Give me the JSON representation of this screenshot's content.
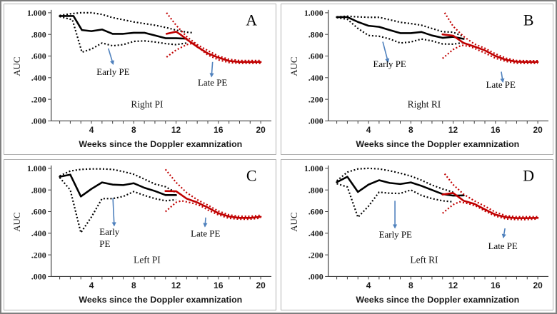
{
  "figure": {
    "background": "#ffffff",
    "outer_border_color": "#7f7f7f",
    "panel_border_color": "#b3b3b3",
    "axis_color": "#3f3f3f",
    "accent_red": "#c00000",
    "arrow_blue": "#4f81bd",
    "text_color": "#1a1a1a"
  },
  "chart_data": [
    {
      "type": "line",
      "panel_letter": "A",
      "caption": "Right PI",
      "xlabel": "Weeks since the Doppler examnization",
      "ylabel": "AUC",
      "ylim": [
        0.0,
        1.0
      ],
      "xlim": [
        0.3,
        20.9
      ],
      "x_major_ticks": [
        4,
        8,
        12,
        16,
        20
      ],
      "x_minor_ticks_range": [
        1,
        20
      ],
      "y_tick_values": [
        1.0,
        0.8,
        0.6,
        0.4,
        0.2,
        0.0
      ],
      "y_tick_labels": [
        "1.000",
        ".800",
        ".600",
        ".400",
        ".200",
        ".000"
      ],
      "grid": false,
      "series": [
        {
          "name": "auc-early-pe",
          "color": "#000000",
          "style": "solid",
          "weeks": [
            1,
            2.3,
            3.1,
            4,
            5,
            6,
            7,
            8,
            9,
            10,
            11,
            12,
            13
          ],
          "values": [
            0.97,
            0.97,
            0.84,
            0.83,
            0.845,
            0.805,
            0.805,
            0.815,
            0.815,
            0.79,
            0.765,
            0.765,
            0.76
          ]
        },
        {
          "name": "upper-ci-early-pe",
          "color": "#000000",
          "style": "dotted",
          "weeks": [
            1,
            2,
            3,
            4,
            5,
            6,
            7,
            8,
            9,
            10,
            11,
            12,
            13,
            13.6
          ],
          "values": [
            0.975,
            0.99,
            1.0,
            1.0,
            0.985,
            0.955,
            0.935,
            0.915,
            0.9,
            0.885,
            0.865,
            0.84,
            0.82,
            0.815
          ]
        },
        {
          "name": "lower-ci-early-pe",
          "color": "#000000",
          "style": "dotted",
          "weeks": [
            1,
            2.2,
            3.1,
            4,
            5,
            6,
            7,
            8,
            9,
            10,
            11,
            12,
            13
          ],
          "values": [
            0.965,
            0.935,
            0.635,
            0.665,
            0.72,
            0.695,
            0.705,
            0.735,
            0.74,
            0.73,
            0.715,
            0.705,
            0.72
          ]
        },
        {
          "name": "auc-late-pe",
          "color": "#c00000",
          "style": "solid",
          "weeks": [
            11.1,
            12,
            12.4,
            13,
            14,
            15,
            16,
            17,
            18,
            19,
            20
          ],
          "values": [
            0.805,
            0.825,
            0.8,
            0.755,
            0.685,
            0.625,
            0.585,
            0.555,
            0.545,
            0.545,
            0.545
          ]
        },
        {
          "name": "upper-ci-late-pe",
          "color": "#c00000",
          "style": "dotted",
          "weeks": [
            11.1,
            12,
            13,
            14,
            15,
            16,
            17,
            18,
            19,
            20
          ],
          "values": [
            1.0,
            0.885,
            0.78,
            0.705,
            0.65,
            0.6,
            0.57,
            0.558,
            0.558,
            0.558
          ]
        },
        {
          "name": "lower-ci-late-pe",
          "color": "#c00000",
          "style": "dotted",
          "weeks": [
            11.1,
            12,
            13,
            13.7,
            14.3,
            15,
            16,
            17,
            18,
            19,
            20
          ],
          "values": [
            0.59,
            0.655,
            0.705,
            0.72,
            0.665,
            0.61,
            0.565,
            0.54,
            0.533,
            0.533,
            0.533
          ]
        }
      ],
      "annotations": [
        {
          "name": "early-pe",
          "lines": [
            "Early PE"
          ],
          "align": "middle",
          "label_week": 6.05,
          "label_auc": 0.425,
          "arrow": {
            "from_week": 5.6,
            "from_auc": 0.67,
            "to_week": 6.05,
            "to_auc": 0.525
          }
        },
        {
          "name": "late-pe",
          "lines": [
            "Late PE"
          ],
          "align": "middle",
          "label_week": 15.45,
          "label_auc": 0.327,
          "arrow": {
            "from_week": 15.45,
            "from_auc": 0.545,
            "to_week": 15.35,
            "to_auc": 0.41
          }
        }
      ]
    },
    {
      "type": "line",
      "panel_letter": "B",
      "caption": "Right RI",
      "xlabel": "Weeks since the Doppler examnization",
      "ylabel": "AUC",
      "ylim": [
        0.0,
        1.0
      ],
      "xlim": [
        0.3,
        20.9
      ],
      "x_major_ticks": [
        4,
        8,
        12,
        16,
        20
      ],
      "x_minor_ticks_range": [
        1,
        20
      ],
      "y_tick_values": [
        1.0,
        0.8,
        0.6,
        0.4,
        0.2,
        0.0
      ],
      "y_tick_labels": [
        "1.000",
        ".800",
        ".600",
        ".400",
        ".200",
        ".000"
      ],
      "grid": false,
      "series": [
        {
          "name": "auc-early-pe",
          "color": "#000000",
          "style": "solid",
          "weeks": [
            1,
            2,
            3,
            4,
            5,
            6,
            7,
            8,
            9,
            10,
            11,
            12,
            13
          ],
          "values": [
            0.96,
            0.96,
            0.915,
            0.88,
            0.87,
            0.84,
            0.812,
            0.812,
            0.822,
            0.79,
            0.768,
            0.778,
            0.758
          ]
        },
        {
          "name": "upper-ci-early-pe",
          "color": "#000000",
          "style": "dotted",
          "weeks": [
            1,
            2,
            3,
            4,
            5,
            6,
            7,
            8,
            9,
            10,
            11,
            12,
            13
          ],
          "values": [
            0.963,
            0.968,
            0.962,
            0.958,
            0.958,
            0.935,
            0.912,
            0.9,
            0.885,
            0.855,
            0.825,
            0.82,
            0.78
          ]
        },
        {
          "name": "lower-ci-early-pe",
          "color": "#000000",
          "style": "dotted",
          "weeks": [
            1,
            2,
            3,
            4,
            5,
            6,
            7,
            8,
            9,
            10,
            11,
            12,
            13
          ],
          "values": [
            0.955,
            0.94,
            0.855,
            0.79,
            0.783,
            0.758,
            0.72,
            0.73,
            0.757,
            0.74,
            0.712,
            0.71,
            0.725
          ]
        },
        {
          "name": "auc-late-pe",
          "color": "#c00000",
          "style": "solid",
          "weeks": [
            11,
            12,
            13,
            14,
            15,
            16,
            17,
            18,
            19,
            20
          ],
          "values": [
            0.8,
            0.788,
            0.72,
            0.688,
            0.652,
            0.6,
            0.565,
            0.548,
            0.545,
            0.545
          ]
        },
        {
          "name": "upper-ci-late-pe",
          "color": "#c00000",
          "style": "dotted",
          "weeks": [
            11.2,
            12,
            13,
            14,
            15,
            16,
            17,
            18,
            19,
            20
          ],
          "values": [
            1.0,
            0.875,
            0.78,
            0.712,
            0.672,
            0.62,
            0.58,
            0.558,
            0.557,
            0.557
          ]
        },
        {
          "name": "lower-ci-late-pe",
          "color": "#c00000",
          "style": "dotted",
          "weeks": [
            11,
            12,
            12.8,
            13.6,
            14.3,
            15,
            16,
            17,
            18,
            19,
            20
          ],
          "values": [
            0.578,
            0.66,
            0.7,
            0.688,
            0.658,
            0.628,
            0.58,
            0.55,
            0.533,
            0.533,
            0.533
          ]
        }
      ],
      "annotations": [
        {
          "name": "early-pe",
          "lines": [
            "Early PE"
          ],
          "align": "middle",
          "label_week": 6.0,
          "label_auc": 0.497,
          "arrow": {
            "from_week": 5.35,
            "from_auc": 0.732,
            "to_week": 5.85,
            "to_auc": 0.545
          }
        },
        {
          "name": "late-pe",
          "lines": [
            "Late PE"
          ],
          "align": "middle",
          "label_week": 16.5,
          "label_auc": 0.307,
          "arrow": {
            "from_week": 16.55,
            "from_auc": 0.455,
            "to_week": 16.7,
            "to_auc": 0.36
          }
        }
      ]
    },
    {
      "type": "line",
      "panel_letter": "C",
      "caption": "Left PI",
      "xlabel": "Weeks since the Doppler examnization",
      "ylabel": "AUC",
      "ylim": [
        0.0,
        1.0
      ],
      "xlim": [
        0.3,
        20.9
      ],
      "x_major_ticks": [
        4,
        8,
        12,
        16,
        20
      ],
      "x_minor_ticks_range": [
        1,
        20
      ],
      "y_tick_values": [
        1.0,
        0.8,
        0.6,
        0.4,
        0.2,
        0.0
      ],
      "y_tick_labels": [
        "1.000",
        ".800",
        ".600",
        ".400",
        ".200",
        ".000"
      ],
      "grid": false,
      "series": [
        {
          "name": "auc-early-pe",
          "color": "#000000",
          "style": "solid",
          "weeks": [
            1,
            2,
            3,
            4,
            5,
            6,
            7,
            8,
            9,
            10,
            11,
            12
          ],
          "values": [
            0.922,
            0.942,
            0.74,
            0.81,
            0.87,
            0.85,
            0.845,
            0.862,
            0.82,
            0.79,
            0.753,
            0.753
          ]
        },
        {
          "name": "upper-ci-early-pe",
          "color": "#000000",
          "style": "dotted",
          "weeks": [
            1,
            2,
            3,
            4,
            5,
            6,
            7,
            8,
            9,
            10,
            11,
            12
          ],
          "values": [
            0.93,
            0.975,
            0.99,
            0.995,
            0.995,
            0.99,
            0.97,
            0.945,
            0.9,
            0.855,
            0.83,
            0.775
          ]
        },
        {
          "name": "lower-ci-early-pe",
          "color": "#000000",
          "style": "dotted",
          "weeks": [
            1,
            2,
            3,
            4,
            5,
            6,
            7,
            8,
            9,
            10,
            11,
            12
          ],
          "values": [
            0.915,
            0.8,
            0.405,
            0.55,
            0.72,
            0.72,
            0.74,
            0.785,
            0.75,
            0.72,
            0.7,
            0.71
          ]
        },
        {
          "name": "auc-late-pe",
          "color": "#c00000",
          "style": "solid",
          "weeks": [
            11,
            12,
            13,
            14,
            15,
            16,
            17,
            18,
            19,
            20
          ],
          "values": [
            0.79,
            0.788,
            0.72,
            0.685,
            0.638,
            0.585,
            0.555,
            0.542,
            0.542,
            0.552
          ]
        },
        {
          "name": "upper-ci-late-pe",
          "color": "#c00000",
          "style": "dotted",
          "weeks": [
            11,
            12,
            13,
            14,
            15,
            16,
            17,
            18,
            19,
            20
          ],
          "values": [
            0.99,
            0.87,
            0.775,
            0.71,
            0.66,
            0.605,
            0.57,
            0.556,
            0.556,
            0.566
          ]
        },
        {
          "name": "lower-ci-late-pe",
          "color": "#c00000",
          "style": "dotted",
          "weeks": [
            11,
            12,
            12.5,
            13.5,
            14.3,
            15,
            16,
            17,
            18,
            19,
            20
          ],
          "values": [
            0.6,
            0.685,
            0.7,
            0.68,
            0.655,
            0.615,
            0.57,
            0.538,
            0.53,
            0.53,
            0.54
          ]
        }
      ],
      "annotations": [
        {
          "name": "early-pe",
          "lines": [
            "Early",
            "PE"
          ],
          "align": "left",
          "label_week": 4.76,
          "label_auc": 0.386,
          "arrow": {
            "from_week": 6.03,
            "from_auc": 0.725,
            "to_week": 6.15,
            "to_auc": 0.47
          }
        },
        {
          "name": "late-pe",
          "lines": [
            "Late PE"
          ],
          "align": "middle",
          "label_week": 14.78,
          "label_auc": 0.37,
          "arrow": {
            "from_week": 14.8,
            "from_auc": 0.545,
            "to_week": 14.73,
            "to_auc": 0.462
          }
        }
      ]
    },
    {
      "type": "line",
      "panel_letter": "D",
      "caption": "Left RI",
      "xlabel": "Weeks since the Doppler examnization",
      "ylabel": "AUC",
      "ylim": [
        0.0,
        1.0
      ],
      "xlim": [
        0.3,
        20.9
      ],
      "x_major_ticks": [
        4,
        8,
        12,
        16,
        20
      ],
      "x_minor_ticks_range": [
        1,
        20
      ],
      "y_tick_values": [
        1.0,
        0.8,
        0.6,
        0.4,
        0.2,
        0.0
      ],
      "y_tick_labels": [
        "1.000",
        ".800",
        ".600",
        ".400",
        ".200",
        ".000"
      ],
      "grid": false,
      "series": [
        {
          "name": "auc-early-pe",
          "color": "#000000",
          "style": "solid",
          "weeks": [
            1,
            2,
            3,
            4,
            5,
            6,
            7,
            8,
            9,
            10,
            11,
            12,
            13
          ],
          "values": [
            0.872,
            0.922,
            0.782,
            0.85,
            0.89,
            0.865,
            0.855,
            0.87,
            0.838,
            0.8,
            0.762,
            0.748,
            0.75
          ]
        },
        {
          "name": "upper-ci-early-pe",
          "color": "#000000",
          "style": "dotted",
          "weeks": [
            1,
            2,
            3,
            4,
            5,
            6,
            7,
            8,
            9,
            10,
            11,
            12
          ],
          "values": [
            0.885,
            0.965,
            0.995,
            1.0,
            0.995,
            0.978,
            0.955,
            0.928,
            0.89,
            0.845,
            0.81,
            0.78
          ]
        },
        {
          "name": "lower-ci-early-pe",
          "color": "#000000",
          "style": "dotted",
          "weeks": [
            1,
            2,
            3,
            4,
            5,
            6,
            7,
            8,
            9,
            10,
            11,
            12
          ],
          "values": [
            0.858,
            0.828,
            0.548,
            0.65,
            0.78,
            0.77,
            0.768,
            0.8,
            0.75,
            0.72,
            0.7,
            0.69
          ]
        },
        {
          "name": "auc-late-pe",
          "color": "#c00000",
          "style": "solid",
          "weeks": [
            11,
            12,
            13,
            14,
            15,
            16,
            17,
            18,
            19,
            20
          ],
          "values": [
            0.758,
            0.772,
            0.7,
            0.672,
            0.62,
            0.572,
            0.548,
            0.54,
            0.54,
            0.542
          ]
        },
        {
          "name": "upper-ci-late-pe",
          "color": "#c00000",
          "style": "dotted",
          "weeks": [
            11.2,
            12,
            13,
            14,
            15,
            16,
            17,
            18,
            19,
            20
          ],
          "values": [
            0.95,
            0.85,
            0.76,
            0.7,
            0.65,
            0.595,
            0.562,
            0.552,
            0.552,
            0.552
          ]
        },
        {
          "name": "lower-ci-late-pe",
          "color": "#c00000",
          "style": "dotted",
          "weeks": [
            11,
            12,
            12.6,
            13.5,
            14.3,
            15,
            16,
            17,
            18,
            19,
            20
          ],
          "values": [
            0.585,
            0.665,
            0.69,
            0.672,
            0.645,
            0.605,
            0.558,
            0.532,
            0.527,
            0.527,
            0.532
          ]
        }
      ],
      "annotations": [
        {
          "name": "early-pe",
          "lines": [
            "Early PE"
          ],
          "align": "middle",
          "label_week": 6.55,
          "label_auc": 0.359,
          "arrow": {
            "from_week": 6.5,
            "from_auc": 0.7,
            "to_week": 6.5,
            "to_auc": 0.45
          }
        },
        {
          "name": "late-pe",
          "lines": [
            "Late PE"
          ],
          "align": "middle",
          "label_week": 16.7,
          "label_auc": 0.255,
          "arrow": {
            "from_week": 16.9,
            "from_auc": 0.445,
            "to_week": 16.75,
            "to_auc": 0.36
          }
        }
      ]
    }
  ]
}
